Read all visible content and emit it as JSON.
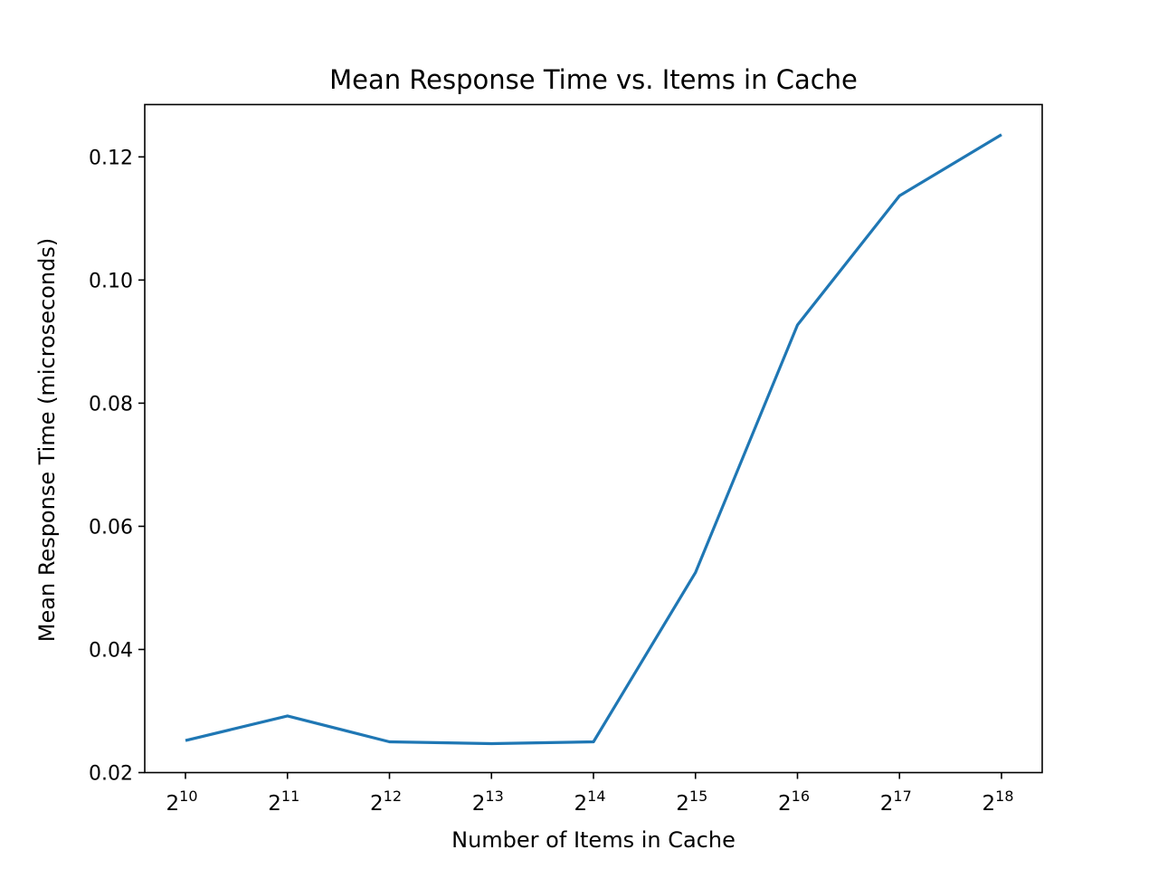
{
  "chart_data": {
    "type": "line",
    "title": "Mean Response Time vs. Items in Cache",
    "xlabel": "Number of Items in Cache",
    "ylabel": "Mean Response Time (microseconds)",
    "x_scale": "log2",
    "x": [
      1024,
      2048,
      4096,
      8192,
      16384,
      32768,
      65536,
      131072,
      262144
    ],
    "xticks": [
      {
        "base": "2",
        "exp": "10"
      },
      {
        "base": "2",
        "exp": "11"
      },
      {
        "base": "2",
        "exp": "12"
      },
      {
        "base": "2",
        "exp": "13"
      },
      {
        "base": "2",
        "exp": "14"
      },
      {
        "base": "2",
        "exp": "15"
      },
      {
        "base": "2",
        "exp": "16"
      },
      {
        "base": "2",
        "exp": "17"
      },
      {
        "base": "2",
        "exp": "18"
      }
    ],
    "yticks": [
      "0.02",
      "0.04",
      "0.06",
      "0.08",
      "0.10",
      "0.12"
    ],
    "ylim": [
      0.02,
      0.1285
    ],
    "series": [
      {
        "color": "#1f77b4",
        "values": [
          0.0252,
          0.0292,
          0.025,
          0.0247,
          0.025,
          0.0525,
          0.0927,
          0.1137,
          0.1236
        ]
      }
    ],
    "grid": false,
    "legend": "none"
  }
}
